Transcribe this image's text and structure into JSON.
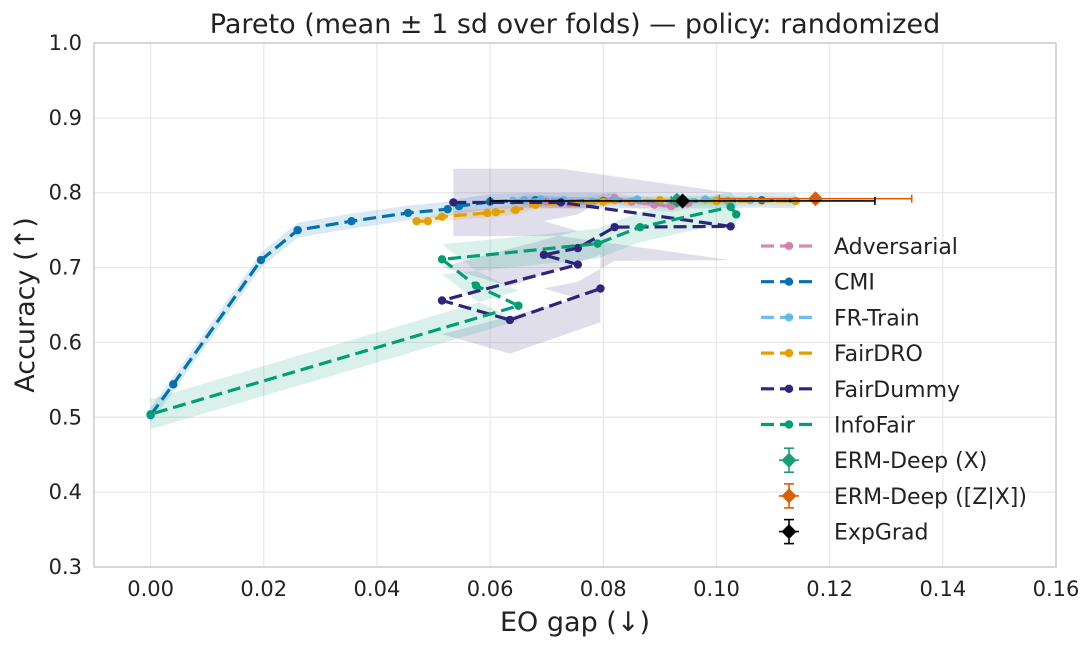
{
  "chart_data": {
    "type": "line",
    "title": "Pareto (mean ± 1 sd over folds) — policy: randomized",
    "xlabel": "EO gap (↓)",
    "ylabel": "Accuracy (↑)",
    "xlim": [
      -0.01,
      0.16
    ],
    "ylim": [
      0.3,
      1.0
    ],
    "xticks": [
      "0.00",
      "0.02",
      "0.04",
      "0.06",
      "0.08",
      "0.10",
      "0.12",
      "0.14",
      "0.16"
    ],
    "yticks": [
      "0.3",
      "0.4",
      "0.5",
      "0.6",
      "0.7",
      "0.8",
      "0.9",
      "1.0"
    ],
    "grid": true,
    "legend_position": "lower-right",
    "series": [
      {
        "name": "Adversarial",
        "color": "#cc79a7",
        "alpha": 0.85,
        "points": [
          [
            0.066,
            0.79
          ],
          [
            0.07,
            0.788
          ],
          [
            0.074,
            0.786
          ],
          [
            0.078,
            0.787
          ],
          [
            0.082,
            0.793
          ],
          [
            0.085,
            0.788
          ],
          [
            0.089,
            0.784
          ],
          [
            0.092,
            0.782
          ],
          [
            0.095,
            0.786
          ]
        ],
        "band_halfwidth": 0.008
      },
      {
        "name": "CMI",
        "color": "#0072b2",
        "alpha": 1.0,
        "points": [
          [
            0.0,
            0.503
          ],
          [
            0.004,
            0.544
          ],
          [
            0.0195,
            0.71
          ],
          [
            0.026,
            0.75
          ],
          [
            0.0355,
            0.762
          ],
          [
            0.0455,
            0.773
          ],
          [
            0.0525,
            0.778
          ],
          [
            0.0545,
            0.782
          ],
          [
            0.06,
            0.788
          ],
          [
            0.068,
            0.79
          ],
          [
            0.08,
            0.789
          ],
          [
            0.09,
            0.789
          ],
          [
            0.1,
            0.789
          ],
          [
            0.108,
            0.79
          ],
          [
            0.114,
            0.789
          ]
        ],
        "band_halfwidth": 0.01
      },
      {
        "name": "FR-Train",
        "color": "#56b4e9",
        "alpha": 0.85,
        "points": [
          [
            0.064,
            0.789
          ],
          [
            0.066,
            0.79
          ],
          [
            0.069,
            0.791
          ],
          [
            0.073,
            0.79
          ],
          [
            0.078,
            0.788
          ],
          [
            0.082,
            0.79
          ],
          [
            0.086,
            0.791
          ],
          [
            0.09,
            0.789
          ],
          [
            0.094,
            0.79
          ],
          [
            0.098,
            0.791
          ],
          [
            0.102,
            0.789
          ],
          [
            0.106,
            0.79
          ]
        ],
        "band_halfwidth": 0.005
      },
      {
        "name": "FairDRO",
        "color": "#e69f00",
        "alpha": 1.0,
        "points": [
          [
            0.047,
            0.762
          ],
          [
            0.049,
            0.762
          ],
          [
            0.0515,
            0.768
          ],
          [
            0.0595,
            0.773
          ],
          [
            0.061,
            0.774
          ],
          [
            0.0645,
            0.777
          ],
          [
            0.068,
            0.784
          ],
          [
            0.075,
            0.786
          ],
          [
            0.08,
            0.788
          ],
          [
            0.09,
            0.79
          ],
          [
            0.1,
            0.789
          ],
          [
            0.114,
            0.789
          ]
        ],
        "band_halfwidth": 0.006
      },
      {
        "name": "FairDummy",
        "color": "#2e2479",
        "alpha": 1.0,
        "points": [
          [
            0.0535,
            0.787
          ],
          [
            0.0725,
            0.787
          ],
          [
            0.1025,
            0.755
          ],
          [
            0.082,
            0.754
          ],
          [
            0.0755,
            0.726
          ],
          [
            0.0695,
            0.717
          ],
          [
            0.0755,
            0.704
          ],
          [
            0.0515,
            0.656
          ],
          [
            0.0635,
            0.63
          ],
          [
            0.0795,
            0.672
          ]
        ],
        "band_halfwidth": 0.045
      },
      {
        "name": "InfoFair",
        "color": "#009e73",
        "alpha": 1.0,
        "points": [
          [
            0.1035,
            0.771
          ],
          [
            0.1025,
            0.781
          ],
          [
            0.0865,
            0.754
          ],
          [
            0.079,
            0.732
          ],
          [
            0.0515,
            0.711
          ],
          [
            0.0575,
            0.676
          ],
          [
            0.065,
            0.649
          ],
          [
            0.0,
            0.504
          ]
        ],
        "band_halfwidth": 0.02
      }
    ],
    "points_with_error": [
      {
        "name": "ERM-Deep (X)",
        "color": "#1a9e77",
        "x": 0.093,
        "y": 0.79,
        "xerr": 0.001,
        "yerr": 0.002
      },
      {
        "name": "ERM-Deep ([Z|X])",
        "color": "#d95f02",
        "x": 0.1175,
        "y": 0.792,
        "xerr": 0.017,
        "yerr": 0.002
      },
      {
        "name": "ExpGrad",
        "color": "#000000",
        "x": 0.094,
        "y": 0.789,
        "xerr": 0.034,
        "yerr": 0.002
      }
    ]
  }
}
